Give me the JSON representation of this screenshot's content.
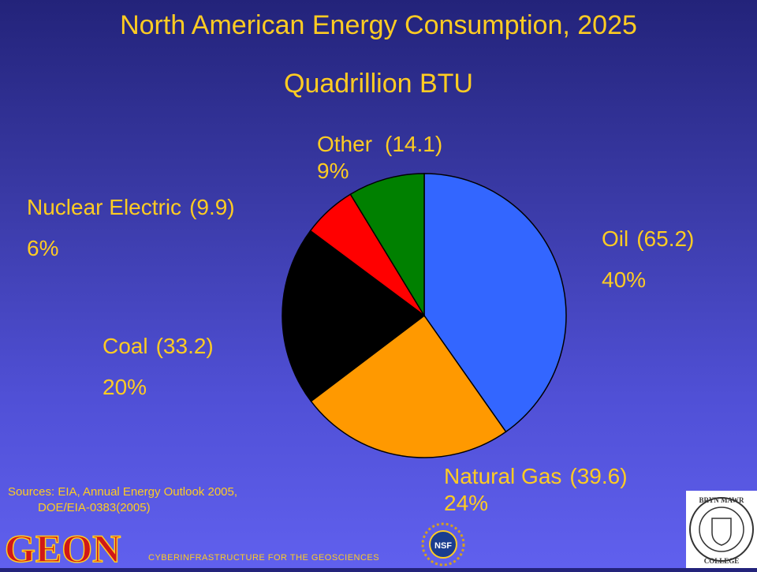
{
  "header": {
    "title": "North American Energy Consumption, 2025",
    "subtitle": "Quadrillion BTU"
  },
  "chart_data": {
    "type": "pie",
    "title": "North American Energy Consumption, 2025",
    "subtitle": "Quadrillion BTU",
    "slices": [
      {
        "label": "Oil",
        "value": 65.2,
        "value_text": "(65.2)",
        "percent": "40%",
        "color": "#3366ff"
      },
      {
        "label": "Natural Gas",
        "value": 39.6,
        "value_text": "(39.6)",
        "percent": "24%",
        "color": "#ff9900"
      },
      {
        "label": "Coal",
        "value": 33.2,
        "value_text": "(33.2)",
        "percent": "20%",
        "color": "#000000"
      },
      {
        "label": "Nuclear Electric",
        "value": 9.9,
        "value_text": "(9.9)",
        "percent": "6%",
        "color": "#ff0000"
      },
      {
        "label": "Other",
        "value": 14.1,
        "value_text": "(14.1)",
        "percent": "9%",
        "color": "#008000"
      }
    ]
  },
  "sources": {
    "line1": "Sources: EIA, Annual Energy Outlook 2005,",
    "line2": "DOE/EIA-0383(2005)"
  },
  "footer": {
    "text": "CYBERINFRASTRUCTURE FOR THE GEOSCIENCES"
  },
  "logos": {
    "geon_text": "GEON",
    "nsf_text": "NSF",
    "bmc_top": "BRYN MAWR",
    "bmc_bottom": "COLLEGE"
  },
  "colors": {
    "text": "#ffcc22",
    "bg_top": "#23237a",
    "bg_bottom": "#6060ee"
  }
}
